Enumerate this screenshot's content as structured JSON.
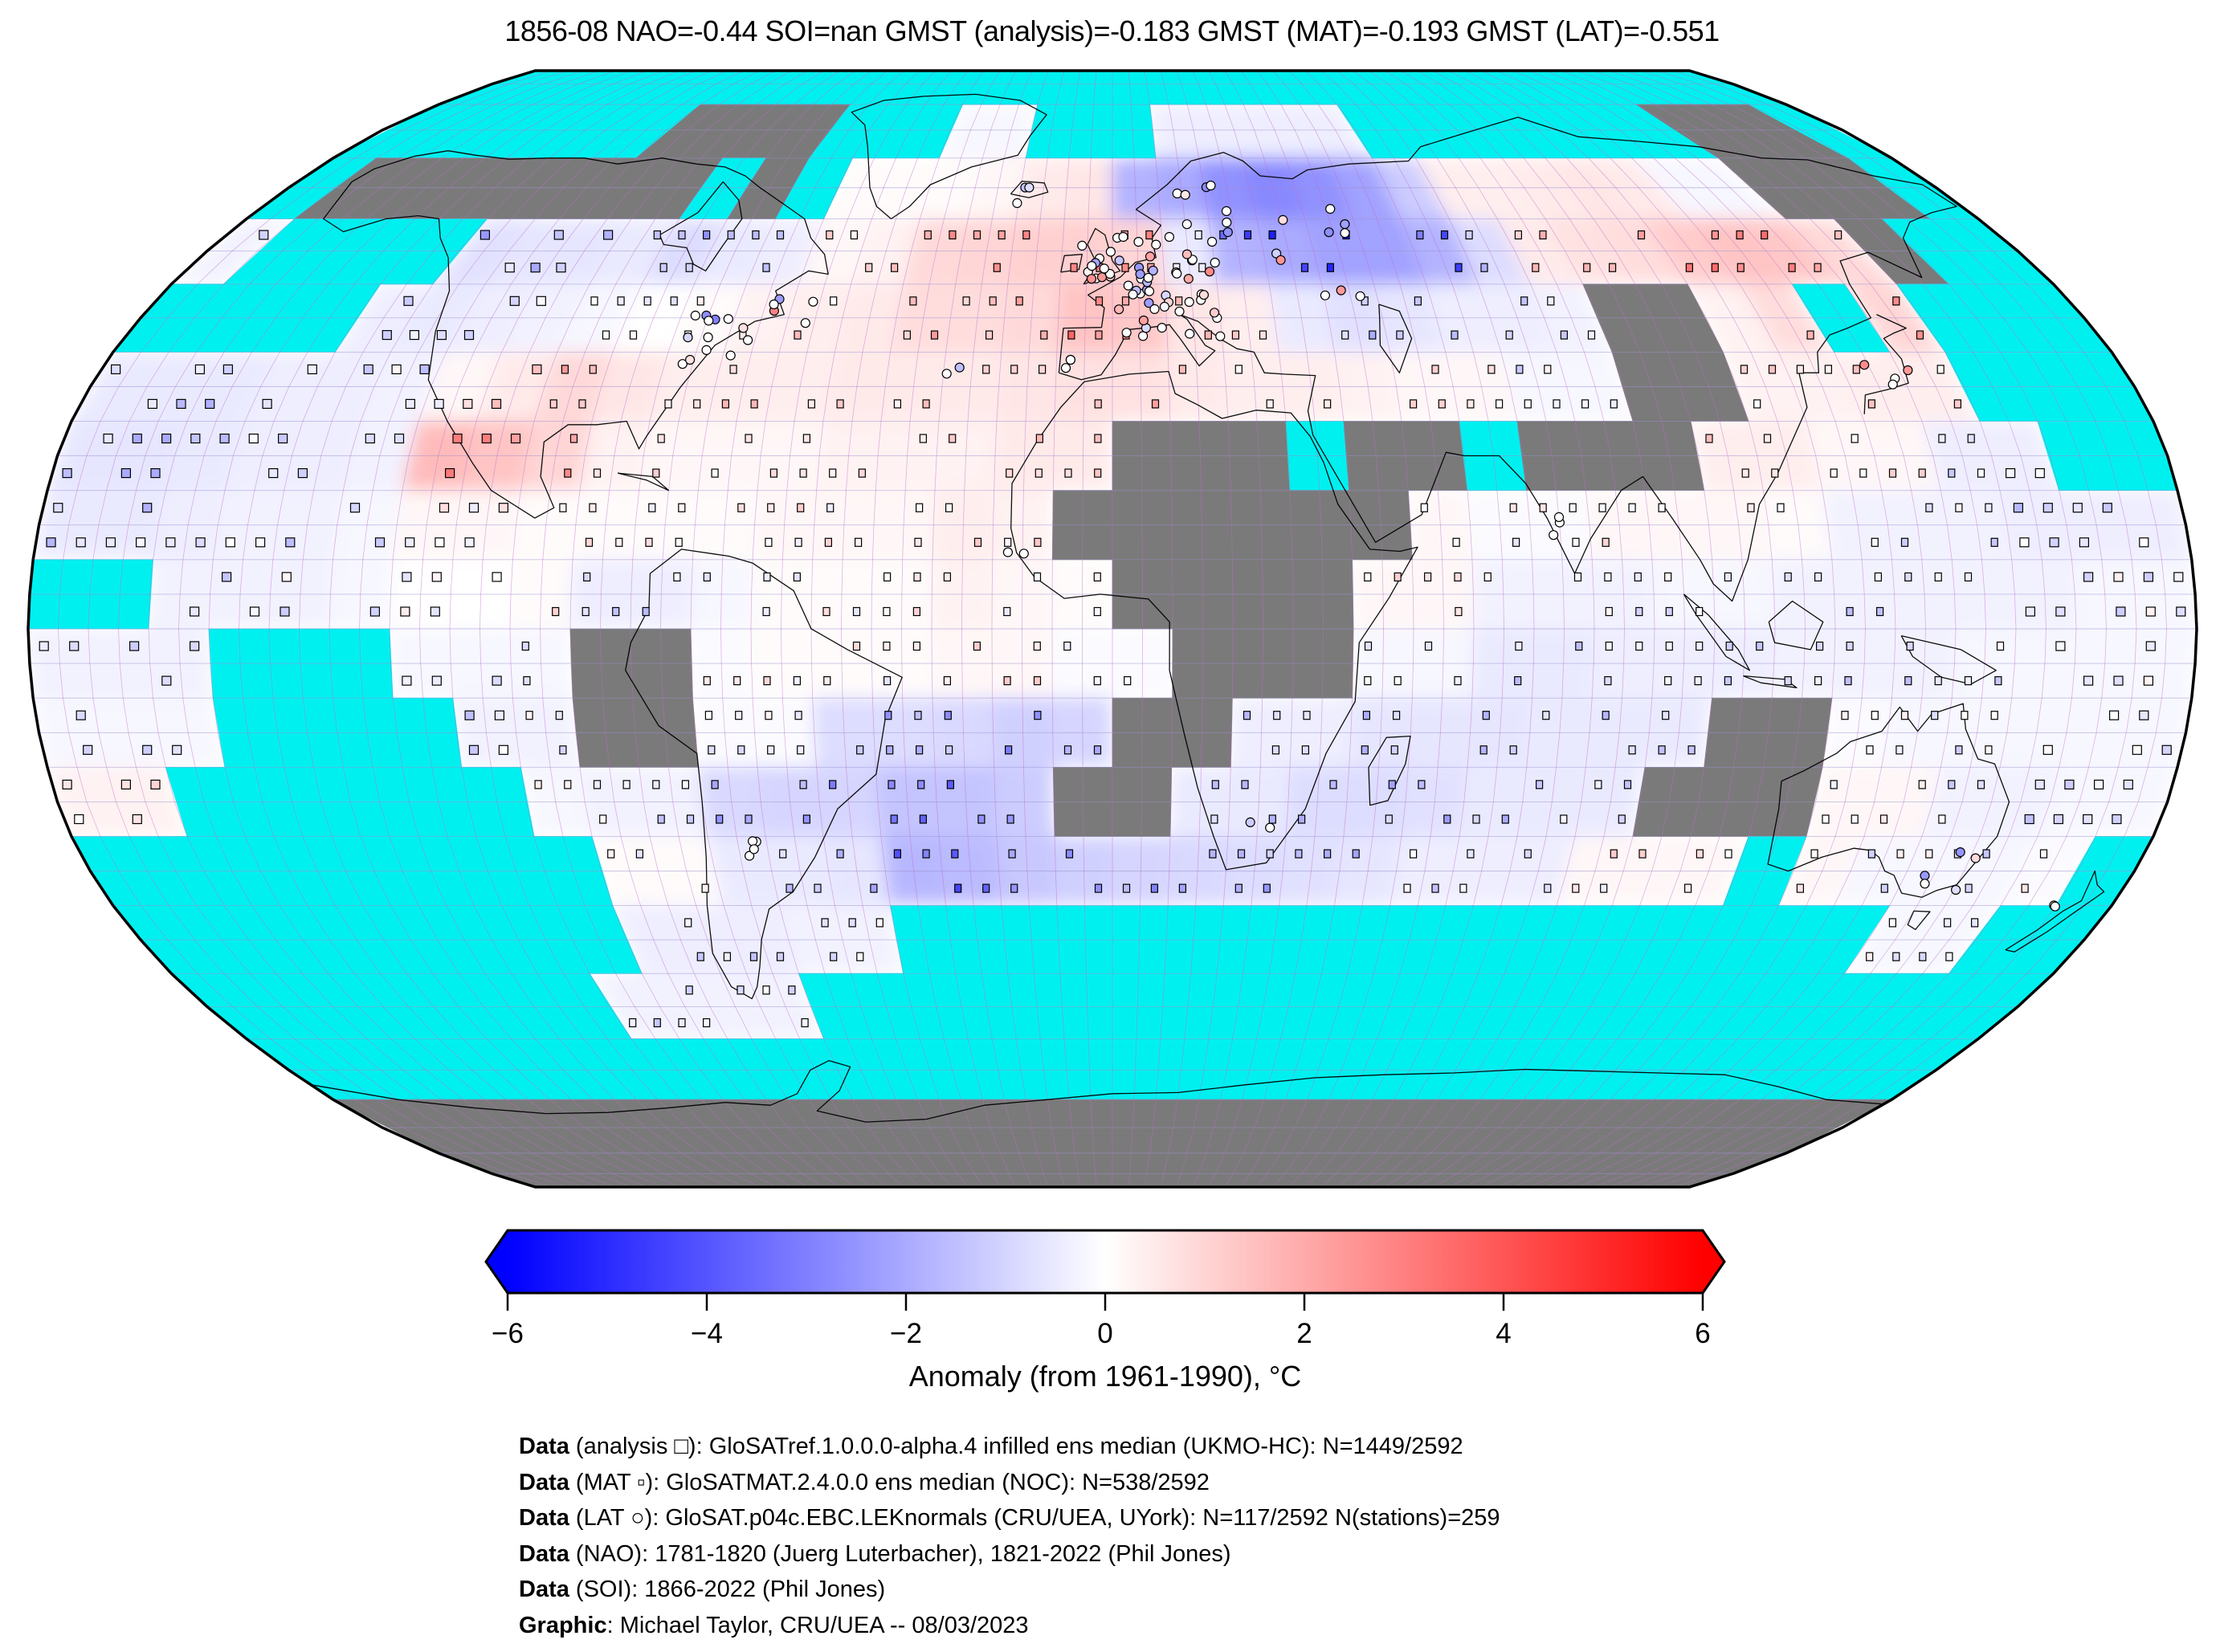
{
  "title": "1856-08 NAO=-0.44 SOI=nan GMST (analysis)=-0.183 GMST (MAT)=-0.193 GMST (LAT)=-0.551",
  "stats": {
    "period": "1856-08",
    "NAO": -0.44,
    "SOI": "nan",
    "GMST_analysis": -0.183,
    "GMST_MAT": -0.193,
    "GMST_LAT": -0.551
  },
  "colorbar": {
    "label": "Anomaly (from 1961-1990), °C",
    "ticks": [
      "−6",
      "−4",
      "−2",
      "0",
      "2",
      "4",
      "6"
    ],
    "tick_values": [
      -6,
      -4,
      -2,
      0,
      2,
      4,
      6
    ],
    "min": -6,
    "max": 6,
    "color_low": "#0000ff",
    "color_mid": "#ffffff",
    "color_high": "#ff0000"
  },
  "credits": [
    {
      "bold": "Data",
      "rest": " (analysis □): GloSATref.1.0.0.0-alpha.4 infilled ens median (UKMO-HC): N=1449/2592"
    },
    {
      "bold": "Data",
      "rest": " (MAT ▫): GloSATMAT.2.4.0.0 ens median (NOC): N=538/2592"
    },
    {
      "bold": "Data",
      "rest": " (LAT ○): GloSAT.p04c.EBC.LEKnormals (CRU/UEA, UYork): N=117/2592 N(stations)=259"
    },
    {
      "bold": "Data",
      "rest": " (NAO): 1781-1820 (Juerg Luterbacher), 1821-2022 (Phil Jones)"
    },
    {
      "bold": "Data",
      "rest": " (SOI): 1866-2022 (Phil Jones)"
    },
    {
      "bold": "Graphic",
      "rest": ": Michael Taylor, CRU/UEA -- 08/03/2023"
    }
  ],
  "markers": {
    "analysis": {
      "glyph": "□",
      "meaning": "analysis grid cell",
      "n": "1449/2592"
    },
    "mat": {
      "glyph": "▫",
      "meaning": "marine air temperature cell",
      "n": "538/2592"
    },
    "lat": {
      "glyph": "○",
      "meaning": "land air temperature station cell",
      "n": "117/2592",
      "stations": 259
    }
  },
  "map_colors": {
    "missing_ocean": "#00f0f0",
    "missing_land": "#7a7a7a",
    "graticule_meridian": "#bb6fc8",
    "graticule_parallel": "#9d8fd0",
    "coastline": "#000000",
    "border": "#000000"
  },
  "chart_data": {
    "type": "heatmap",
    "projection": "robinson",
    "title": "1856-08 global temperature anomaly field",
    "units": "°C anomaly vs 1961-1990",
    "value_range": [
      -6,
      6
    ],
    "lat_start": 90,
    "lat_step": -10,
    "lon_start": -180,
    "lon_step": 10,
    "mask_legend": {
      ".": "data",
      "c": "no-data ocean (cyan)",
      "g": "no-data land (gray)"
    },
    "mask": [
      "cccccccccccccccccccccccccccccccccccc",
      "cccccccggggccc..ccc.....ccccccccgggc",
      "cggggggggcgc....................gggc",
      ".cccc............................gcc",
      "cccc.......................gg..c.ccc",
      "...........................gg....ccc",
      "..................gggcggcggg......cc",
      ".................gggggg.............",
      "cc................gggg..............",
      "...ccc...gg........ggg..............",
      "...cccc..gg.......gg........gg......",
      "..cccccc.........gg........ggg......",
      "ccccccccc....................c.....c",
      "ccccccccc.....cccccccccccccccccc..cc",
      "cccccccc....cccccccccccccccccccccccc",
      "cccccccccccccccccccccccccccccccccccc",
      "gggggggggggggggggggggggggggggggggggg",
      "gggggggggggggggggggggggggggggggggggg"
    ],
    "values": [
      [
        0,
        0,
        0,
        0,
        0,
        0,
        0,
        0,
        0,
        0,
        0,
        0,
        0,
        0,
        0,
        0,
        0,
        0,
        0,
        0,
        0,
        0,
        0,
        0,
        0,
        0,
        0,
        0,
        0,
        0,
        0,
        0,
        0,
        0,
        0,
        0
      ],
      [
        0,
        0,
        0,
        0,
        0,
        0,
        0,
        0,
        0,
        0,
        0,
        0,
        0,
        0,
        -0.2,
        -0.2,
        0,
        0,
        0,
        -0.4,
        -0.4,
        -0.4,
        -0.4,
        -0.4,
        0,
        0,
        0,
        0,
        0,
        0,
        0,
        0,
        0,
        0,
        0,
        0
      ],
      [
        0,
        0,
        0,
        0,
        0,
        0,
        0,
        0,
        0,
        0,
        0,
        0,
        0.1,
        0.1,
        0.1,
        0.2,
        0.5,
        0.6,
        -1.8,
        -2,
        -2.6,
        -2.8,
        -2.6,
        -2.2,
        -1.2,
        0.4,
        0.4,
        0.5,
        0.6,
        0.5,
        -0.2,
        -0.2,
        0,
        0,
        0,
        0
      ],
      [
        -0.3,
        0,
        0,
        0,
        0,
        -0.7,
        -0.6,
        -0.6,
        -0.5,
        -0.8,
        -0.5,
        -0.4,
        0.2,
        0.3,
        0.9,
        1,
        1.1,
        1.1,
        1,
        -0.5,
        -1.8,
        -2,
        -2.2,
        -2.2,
        -1.8,
        -0.8,
        0.5,
        0.7,
        0.8,
        1.2,
        1.4,
        1.3,
        0.9,
        0,
        0,
        0
      ],
      [
        0,
        0,
        0,
        0,
        -0.4,
        -0.5,
        -0.4,
        -0.3,
        -0.2,
        0,
        0.1,
        0.3,
        0.4,
        0.5,
        0.8,
        0.8,
        0.9,
        1.4,
        1.3,
        0.6,
        0.4,
        -0.5,
        -0.7,
        -0.6,
        -0.4,
        -0.4,
        -0.3,
        0,
        0,
        0.3,
        0.8,
        0,
        1,
        0,
        0,
        0
      ],
      [
        -0.5,
        -0.5,
        -0.5,
        -0.4,
        -0.4,
        -0.3,
        0.2,
        0.5,
        0.9,
        0.6,
        0.4,
        0.4,
        0.4,
        0.5,
        0.5,
        0.5,
        0.6,
        0.7,
        0.7,
        0.5,
        0.4,
        0.4,
        0.3,
        0.2,
        0.2,
        -0.2,
        -0.2,
        0,
        0,
        0.3,
        0.3,
        0.4,
        0.4,
        0,
        0,
        0
      ],
      [
        -0.6,
        -0.6,
        -0.5,
        -0.4,
        -0.4,
        -0.3,
        1.6,
        1.4,
        1,
        0.3,
        0.2,
        0.2,
        0.2,
        0.3,
        0.3,
        0.3,
        0.5,
        0.5,
        0,
        0,
        0,
        0,
        0,
        0,
        0,
        0,
        0,
        0,
        0.4,
        0.4,
        0.2,
        0.2,
        -0.4,
        -0.4,
        0,
        0
      ],
      [
        -0.5,
        -0.5,
        -0.4,
        -0.3,
        -0.3,
        -0.2,
        0.2,
        0.2,
        0.1,
        0.1,
        0.1,
        0.1,
        0.2,
        0.2,
        0.2,
        0.4,
        0.3,
        0,
        0,
        0,
        0,
        0,
        0,
        0.2,
        -0.1,
        -0.1,
        0.2,
        0.2,
        0.2,
        0.1,
        -0.3,
        -0.3,
        -0.3,
        -0.4,
        -0.4,
        -0.4
      ],
      [
        0,
        0,
        -0.3,
        -0.3,
        -0.3,
        -0.2,
        0,
        0,
        0.1,
        -0.4,
        -0.4,
        -0.2,
        0.1,
        0.1,
        0.1,
        0.3,
        0.2,
        0.1,
        0,
        0,
        0,
        0,
        0.2,
        0.2,
        -0.3,
        -0.3,
        -0.3,
        -0.2,
        -0.2,
        -0.3,
        -0.3,
        -0.3,
        -0.3,
        -0.3,
        -0.2,
        -0.2
      ],
      [
        -0.3,
        -0.3,
        -0.3,
        0,
        0,
        0,
        -0.2,
        -0.2,
        -0.2,
        0,
        0,
        -0.1,
        0.1,
        0.1,
        0.1,
        0.2,
        0.2,
        -0.1,
        -0.1,
        0,
        0,
        0,
        -0.2,
        -0.2,
        -0.5,
        -0.5,
        -0.4,
        -0.4,
        -0.4,
        -0.3,
        -0.3,
        -0.3,
        -0.2,
        -0.2,
        -0.2,
        -0.2
      ],
      [
        -0.2,
        -0.2,
        -0.2,
        0,
        0,
        0,
        0,
        -0.3,
        -0.3,
        0,
        0,
        -0.1,
        -0.1,
        -0.8,
        -0.8,
        -0.9,
        -1.1,
        -1,
        0,
        0,
        -0.4,
        -0.4,
        -0.6,
        -0.6,
        -0.6,
        -0.5,
        -0.5,
        -0.5,
        0,
        0,
        -0.1,
        -0.2,
        -0.2,
        -0.2,
        -0.2,
        -0.2
      ],
      [
        0.3,
        0.3,
        0,
        0,
        0,
        0,
        0,
        0,
        -0.2,
        -0.3,
        -0.3,
        -0.9,
        -1,
        -1,
        -1.4,
        -1.4,
        -1.2,
        0,
        0,
        -0.5,
        -0.5,
        -0.8,
        -0.8,
        -0.7,
        -0.5,
        -0.5,
        -0.5,
        0,
        0,
        0,
        0.2,
        0.2,
        -0.3,
        -0.3,
        -0.2,
        -0.2
      ],
      [
        0,
        0,
        0,
        0,
        0,
        0,
        0,
        0,
        0,
        0.1,
        0.1,
        -0.5,
        -0.5,
        -0.6,
        -1.7,
        -1.6,
        -1.3,
        -1.1,
        -1,
        -0.9,
        -0.8,
        -0.7,
        -0.6,
        -0.4,
        -0.4,
        -0.4,
        0.2,
        0.2,
        0.2,
        0,
        0.2,
        -0.2,
        -0.2,
        -0.2,
        -0.1,
        0
      ],
      [
        0,
        0,
        0,
        0,
        0,
        0,
        0,
        0,
        0,
        -0.4,
        -0.4,
        -0.4,
        -0.3,
        -0.3,
        0,
        0,
        0,
        0,
        0,
        0,
        0,
        0,
        0,
        0,
        0,
        0,
        0,
        0,
        0,
        0,
        0,
        0,
        -0.2,
        -0.2,
        0,
        0
      ],
      [
        0,
        0,
        0,
        0,
        0,
        0,
        0,
        0,
        -0.3,
        -0.3,
        -0.3,
        -0.3,
        0,
        0,
        0,
        0,
        0,
        0,
        0,
        0,
        0,
        0,
        0,
        0,
        0,
        0,
        0,
        0,
        0,
        0,
        0,
        0,
        0,
        0,
        0,
        0
      ],
      [
        0,
        0,
        0,
        0,
        0,
        0,
        0,
        0,
        0,
        0,
        0,
        0,
        0,
        0,
        0,
        0,
        0,
        0,
        0,
        0,
        0,
        0,
        0,
        0,
        0,
        0,
        0,
        0,
        0,
        0,
        0,
        0,
        0,
        0,
        0,
        0
      ],
      [
        0,
        0,
        0,
        0,
        0,
        0,
        0,
        0,
        0,
        0,
        0,
        0,
        0,
        0,
        0,
        0,
        0,
        0,
        0,
        0,
        0,
        0,
        0,
        0,
        0,
        0,
        0,
        0,
        0,
        0,
        0,
        0,
        0,
        0,
        0,
        0
      ],
      [
        0,
        0,
        0,
        0,
        0,
        0,
        0,
        0,
        0,
        0,
        0,
        0,
        0,
        0,
        0,
        0,
        0,
        0,
        0,
        0,
        0,
        0,
        0,
        0,
        0,
        0,
        0,
        0,
        0,
        0,
        0,
        0,
        0,
        0,
        0,
        0
      ]
    ],
    "features": [
      "Strong cold anomaly (-2 to -3 C) over Scandinavia and NW Russia",
      "Warm anomaly (+1 to +1.5 C) over W Europe / France and mid-latitude N Atlantic",
      "Warm anomaly (+1.5 to +2 C) over Mexico / Gulf of Mexico",
      "Warm anomaly (+1 to +1.5 C) over Sea of Okhotsk / Kamchatka",
      "Cool anomalies (-0.5 to -1.7 C) across subtropical S Atlantic and S Indian Ocean",
      "Cyan cells = no observations (Arctic, Southern Ocean, SE and NW Pacific, Red Sea, Persian Gulf)",
      "Gray cells = unobserved land (N Canada, NE Siberia, Sahara, Arabia, C Asia, Amazon, S Africa, C Australia, Antarctica)"
    ],
    "legend_position": "bottom",
    "grid": true
  }
}
